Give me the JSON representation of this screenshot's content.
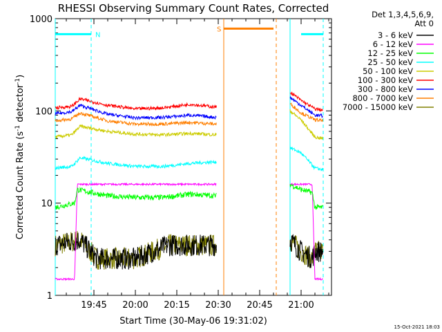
{
  "chart_data": {
    "type": "line",
    "title": "RHESSI Observing Summary Count Rates, Corrected",
    "xlabel": "Start Time (30-May-06 19:31:02)",
    "ylabel_main": "Corrected Count Rate (s",
    "ylabel_sup1": "-1",
    "ylabel_mid": " detector",
    "ylabel_sup2": "-1",
    "ylabel_end": ")",
    "x_ticks": [
      "19:45",
      "20:00",
      "20:15",
      "20:30",
      "20:45",
      "21:00"
    ],
    "x_tick_minutes": [
      45,
      60,
      75,
      90,
      105,
      120
    ],
    "xlim_minutes": [
      31,
      131
    ],
    "y_scale": "log",
    "ylim": [
      1,
      1000
    ],
    "y_tick_labels": [
      "1",
      "10",
      "100",
      "1000"
    ],
    "legend": {
      "header_line1": "Det 1,3,4,5,6,9,",
      "header_line2": "Att 0",
      "placement": "right"
    },
    "series": [
      {
        "name": "3 - 6 keV",
        "color": "#000000"
      },
      {
        "name": "6 - 12 keV",
        "color": "#ff00ff"
      },
      {
        "name": "12 - 25 keV",
        "color": "#00ff00"
      },
      {
        "name": "25 - 50 keV",
        "color": "#00ffff"
      },
      {
        "name": "50 - 100 keV",
        "color": "#cccc00"
      },
      {
        "name": "100 - 300 keV",
        "color": "#ff0000"
      },
      {
        "name": "300 - 800 keV",
        "color": "#0000ff"
      },
      {
        "name": "800 - 7000 keV",
        "color": "#ff7f00"
      },
      {
        "name": "7000 - 15000 keV",
        "color": "#808000"
      }
    ],
    "segments_minutes": [
      [
        31,
        89.5
      ],
      [
        116,
        128
      ]
    ],
    "series_levels": {
      "100 - 300 keV": [
        [
          31,
          108
        ],
        [
          37,
          112
        ],
        [
          40,
          135
        ],
        [
          50,
          115
        ],
        [
          60,
          105
        ],
        [
          70,
          108
        ],
        [
          80,
          118
        ],
        [
          89,
          110
        ],
        [
          116,
          160
        ],
        [
          120,
          130
        ],
        [
          125,
          105
        ],
        [
          128,
          102
        ]
      ],
      "300 - 800 keV": [
        [
          31,
          93
        ],
        [
          37,
          98
        ],
        [
          40,
          115
        ],
        [
          50,
          92
        ],
        [
          60,
          84
        ],
        [
          70,
          85
        ],
        [
          80,
          90
        ],
        [
          89,
          85
        ],
        [
          116,
          140
        ],
        [
          120,
          115
        ],
        [
          125,
          90
        ],
        [
          128,
          88
        ]
      ],
      "800 - 7000 keV": [
        [
          31,
          78
        ],
        [
          37,
          82
        ],
        [
          40,
          95
        ],
        [
          50,
          78
        ],
        [
          60,
          72
        ],
        [
          70,
          72
        ],
        [
          80,
          75
        ],
        [
          89,
          72
        ],
        [
          116,
          120
        ],
        [
          120,
          95
        ],
        [
          125,
          80
        ],
        [
          128,
          78
        ]
      ],
      "50 - 100 keV": [
        [
          31,
          52
        ],
        [
          37,
          55
        ],
        [
          40,
          68
        ],
        [
          50,
          60
        ],
        [
          60,
          56
        ],
        [
          70,
          55
        ],
        [
          80,
          57
        ],
        [
          89,
          55
        ],
        [
          116,
          100
        ],
        [
          120,
          80
        ],
        [
          125,
          52
        ],
        [
          128,
          50
        ]
      ],
      "25 - 50 keV": [
        [
          31,
          24
        ],
        [
          37,
          25
        ],
        [
          40,
          31
        ],
        [
          50,
          27
        ],
        [
          60,
          25
        ],
        [
          70,
          25
        ],
        [
          80,
          27
        ],
        [
          89,
          28
        ],
        [
          116,
          40
        ],
        [
          120,
          35
        ],
        [
          125,
          24
        ],
        [
          128,
          23
        ]
      ],
      "6 - 12 keV": [
        [
          31,
          1.5
        ],
        [
          38,
          1.5
        ],
        [
          39,
          16
        ],
        [
          50,
          16
        ],
        [
          60,
          16
        ],
        [
          70,
          16
        ],
        [
          80,
          16
        ],
        [
          89,
          16
        ],
        [
          116,
          16
        ],
        [
          120,
          16
        ],
        [
          124,
          16
        ],
        [
          125,
          1.5
        ],
        [
          128,
          1.5
        ]
      ],
      "12 - 25 keV": [
        [
          31,
          9
        ],
        [
          38,
          10
        ],
        [
          39,
          14
        ],
        [
          50,
          12
        ],
        [
          60,
          11.5
        ],
        [
          70,
          11.5
        ],
        [
          80,
          12.5
        ],
        [
          89,
          12
        ],
        [
          116,
          16
        ],
        [
          120,
          14
        ],
        [
          124,
          13
        ],
        [
          125,
          9
        ],
        [
          128,
          9
        ]
      ],
      "3 - 6 keV": [
        [
          31,
          3.5
        ],
        [
          40,
          4
        ],
        [
          46,
          2.5
        ],
        [
          60,
          2.5
        ],
        [
          72,
          3.5
        ],
        [
          80,
          3.5
        ],
        [
          89,
          3.5
        ],
        [
          116,
          4
        ],
        [
          120,
          3
        ],
        [
          124,
          2.5
        ],
        [
          125,
          3
        ],
        [
          128,
          3
        ]
      ],
      "7000 - 15000 keV": [
        [
          31,
          3.5
        ],
        [
          40,
          4
        ],
        [
          46,
          2.5
        ],
        [
          60,
          2.5
        ],
        [
          72,
          3.5
        ],
        [
          80,
          3.5
        ],
        [
          89,
          3.5
        ],
        [
          116,
          4
        ],
        [
          120,
          3
        ],
        [
          124,
          2.5
        ],
        [
          125,
          3
        ],
        [
          128,
          3
        ]
      ]
    },
    "markers": [
      {
        "label": "N",
        "color": "#00ffff",
        "solid_minutes": [
          31,
          116
        ],
        "dashed_minutes": [
          44,
          128
        ],
        "bar_spans": [
          [
            31,
            44
          ],
          [
            120,
            128
          ]
        ],
        "bar_level": 680
      },
      {
        "label": "S",
        "color": "#ff7f00",
        "solid_minutes": [
          92
        ],
        "dashed_minutes": [
          111
        ],
        "bar_spans": [
          [
            92,
            110
          ]
        ],
        "bar_level": 780
      }
    ]
  },
  "footer": {
    "timestamp": "15-Oct-2021 18:03"
  }
}
